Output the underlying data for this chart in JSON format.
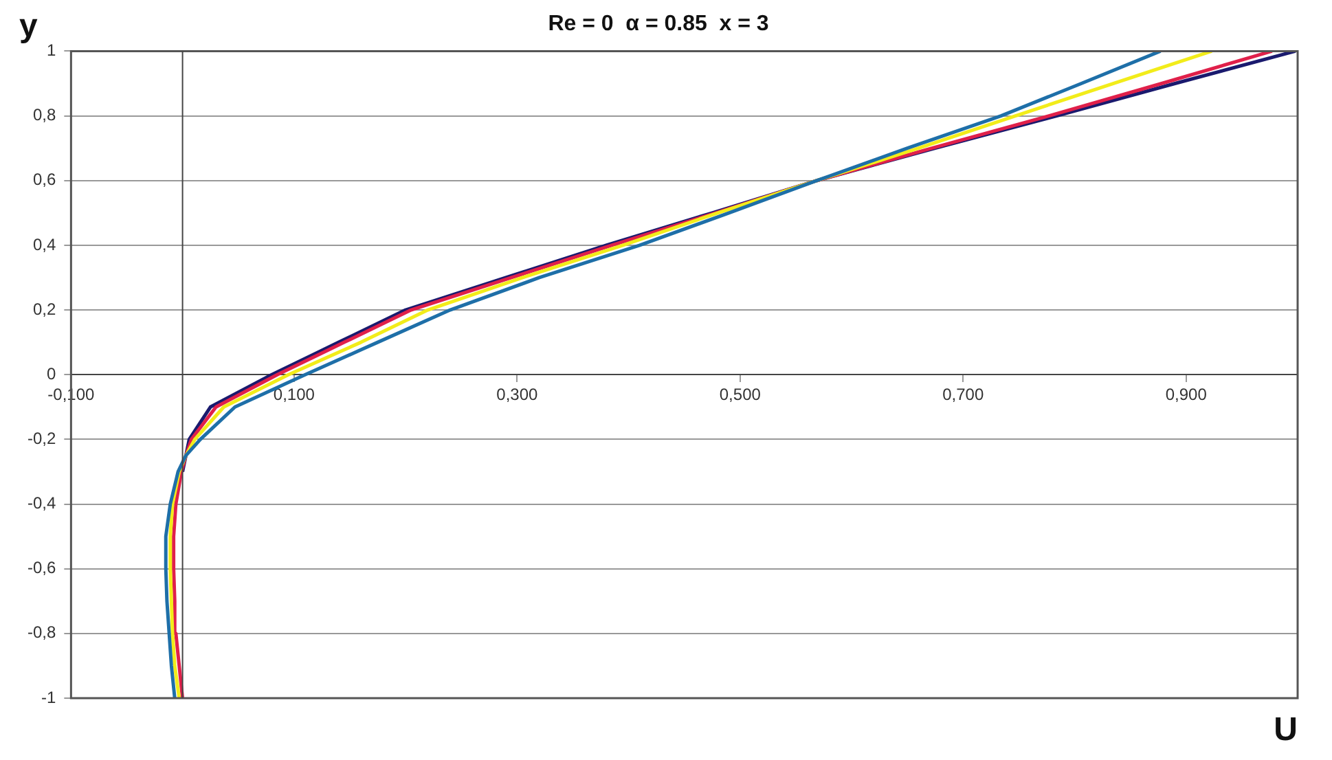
{
  "chart_data": {
    "type": "line",
    "title": "Re = 0  α = 0.85  x = 3",
    "xlabel": "U",
    "ylabel": "y",
    "xlim": [
      -0.1,
      1.0
    ],
    "ylim": [
      -1,
      1
    ],
    "xticks": [
      {
        "value": -0.1,
        "label": "-0,100"
      },
      {
        "value": 0.1,
        "label": "0,100"
      },
      {
        "value": 0.3,
        "label": "0,300"
      },
      {
        "value": 0.5,
        "label": "0,500"
      },
      {
        "value": 0.7,
        "label": "0,700"
      },
      {
        "value": 0.9,
        "label": "0,900"
      }
    ],
    "yticks": [
      -1,
      {
        "value": -0.8,
        "label": "-0,8"
      },
      {
        "value": -0.6,
        "label": "-0,6"
      },
      {
        "value": -0.4,
        "label": "-0,4"
      },
      {
        "value": -0.2,
        "label": "-0,2"
      },
      0,
      {
        "value": 0.2,
        "label": "0,2"
      },
      {
        "value": 0.4,
        "label": "0,4"
      },
      {
        "value": 0.6,
        "label": "0,6"
      },
      {
        "value": 0.8,
        "label": "0,8"
      },
      1
    ],
    "grid": "y",
    "marker": "none",
    "line_style": "solid",
    "series": [
      {
        "color": "#1e6fa8",
        "values": [
          -1,
          -0.9,
          -0.8,
          -0.7,
          -0.6,
          -0.5,
          -0.4,
          -0.3,
          -0.25,
          -0.2,
          -0.1,
          0,
          0.1,
          0.2,
          0.3,
          0.4,
          0.5,
          0.6,
          0.7,
          0.8,
          0.9,
          1
        ],
        "x": [
          -0.007,
          -0.01,
          -0.012,
          -0.014,
          -0.015,
          -0.015,
          -0.011,
          -0.004,
          0.003,
          0.016,
          0.047,
          0.11,
          0.175,
          0.24,
          0.32,
          0.41,
          0.49,
          0.569,
          0.65,
          0.734,
          0.806,
          0.877
        ]
      },
      {
        "color": "#f2ec1a",
        "values": [
          -1,
          -0.9,
          -0.8,
          -0.7,
          -0.6,
          -0.5,
          -0.4,
          -0.3,
          -0.25,
          -0.2,
          -0.1,
          0,
          0.1,
          0.2,
          0.3,
          0.4,
          0.5,
          0.6,
          0.7,
          0.8,
          0.9,
          1
        ],
        "x": [
          -0.003,
          -0.007,
          -0.009,
          -0.01,
          -0.011,
          -0.011,
          -0.009,
          -0.003,
          0.003,
          0.011,
          0.037,
          0.095,
          0.16,
          0.22,
          0.305,
          0.395,
          0.48,
          0.569,
          0.66,
          0.747,
          0.835,
          0.923
        ]
      },
      {
        "color": "#e0204a",
        "values": [
          -1,
          -0.9,
          -0.8,
          -0.7,
          -0.6,
          -0.5,
          -0.4,
          -0.3,
          -0.25,
          -0.2,
          -0.1,
          0,
          0.1,
          0.2,
          0.3,
          0.4,
          0.5,
          0.6,
          0.7,
          0.8,
          0.9,
          1
        ],
        "x": [
          0,
          -0.003,
          -0.006,
          -0.007,
          -0.008,
          -0.008,
          -0.006,
          -0.001,
          0.003,
          0.008,
          0.03,
          0.085,
          0.145,
          0.205,
          0.295,
          0.385,
          0.478,
          0.569,
          0.672,
          0.777,
          0.878,
          0.977
        ]
      },
      {
        "color": "#1a1a6e",
        "values": [
          null,
          null,
          null,
          null,
          null,
          null,
          null,
          -0.3,
          -0.25,
          -0.2,
          -0.1,
          0,
          0.1,
          0.2,
          0.3,
          0.4,
          0.5,
          0.6,
          0.7,
          0.8,
          0.9,
          1
        ],
        "x": [
          null,
          null,
          null,
          null,
          null,
          null,
          null,
          0,
          0.003,
          0.006,
          0.025,
          0.08,
          0.14,
          0.2,
          0.29,
          0.38,
          0.475,
          0.569,
          0.675,
          0.784,
          0.89,
          0.998
        ]
      }
    ]
  }
}
